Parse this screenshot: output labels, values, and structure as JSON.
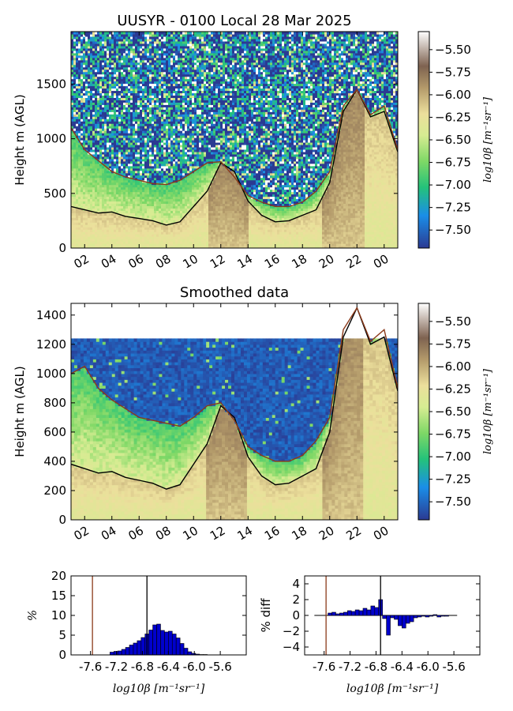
{
  "colors": {
    "colormap": [
      "#2b3a92",
      "#1a8ee8",
      "#24c27a",
      "#7ed866",
      "#d6ec92",
      "#ecdf9c",
      "#b39a6a",
      "#7e6250",
      "#ffffff"
    ],
    "pbl_black": "#000000",
    "pbl_brown": "#8b3a1a",
    "hist_bar": "#0000cc"
  },
  "chart_data": [
    {
      "id": "top",
      "type": "heatmap",
      "title": "UUSYR - 0100 Local 28 Mar 2025",
      "xlabel": "",
      "ylabel": "Height m (AGL)",
      "ylim": [
        0,
        1980
      ],
      "yticks": [
        0,
        500,
        1000,
        1500
      ],
      "xticks": [
        "02",
        "04",
        "06",
        "08",
        "10",
        "12",
        "14",
        "16",
        "18",
        "20",
        "22",
        "00"
      ],
      "colorbar_label": "log10β [m⁻¹sr⁻¹]",
      "colorbar_range": [
        -7.7,
        -5.3
      ],
      "colorbar_ticks": [
        "-5.50",
        "-5.75",
        "-6.00",
        "-6.25",
        "-6.50",
        "-6.75",
        "-7.00",
        "-7.25",
        "-7.50"
      ],
      "hours": [
        1,
        2,
        3,
        4,
        5,
        6,
        7,
        8,
        9,
        10,
        11,
        12,
        13,
        14,
        15,
        16,
        17,
        18,
        19,
        20,
        21,
        22,
        23,
        24,
        25
      ],
      "series": [
        {
          "color": "black",
          "values": [
            380,
            350,
            320,
            330,
            290,
            270,
            250,
            210,
            240,
            380,
            520,
            780,
            700,
            430,
            300,
            240,
            250,
            300,
            350,
            600,
            1250,
            1450,
            1200,
            1250,
            880
          ]
        },
        {
          "color": "brown",
          "values": [
            1100,
            900,
            800,
            700,
            650,
            620,
            590,
            580,
            620,
            700,
            780,
            790,
            650,
            480,
            420,
            380,
            380,
            420,
            520,
            700,
            1300,
            1450,
            1220,
            1300,
            900
          ]
        }
      ]
    },
    {
      "id": "mid",
      "type": "heatmap",
      "title": "Smoothed data",
      "xlabel": "",
      "ylabel": "Height m (AGL)",
      "ylim": [
        0,
        1480
      ],
      "yticks": [
        0,
        200,
        400,
        600,
        800,
        1000,
        1200,
        1400
      ],
      "xticks": [
        "02",
        "04",
        "06",
        "08",
        "10",
        "12",
        "14",
        "16",
        "18",
        "20",
        "22",
        "00"
      ],
      "data_top": 1240,
      "colorbar_label": "log10β [m⁻¹sr⁻¹]",
      "colorbar_range": [
        -7.7,
        -5.3
      ],
      "colorbar_ticks": [
        "-5.50",
        "-5.75",
        "-6.00",
        "-6.25",
        "-6.50",
        "-6.75",
        "-7.00",
        "-7.25",
        "-7.50"
      ],
      "hours": [
        1,
        2,
        3,
        4,
        5,
        6,
        7,
        8,
        9,
        10,
        11,
        12,
        13,
        14,
        15,
        16,
        17,
        18,
        19,
        20,
        21,
        22,
        23,
        24,
        25
      ],
      "series": [
        {
          "color": "black",
          "values": [
            380,
            350,
            320,
            330,
            290,
            270,
            250,
            210,
            240,
            380,
            520,
            780,
            700,
            430,
            300,
            240,
            250,
            300,
            350,
            600,
            1250,
            1450,
            1200,
            1250,
            880
          ]
        },
        {
          "color": "brown",
          "values": [
            1000,
            1050,
            900,
            820,
            760,
            700,
            680,
            660,
            640,
            700,
            780,
            800,
            680,
            500,
            440,
            400,
            400,
            440,
            540,
            700,
            1300,
            1450,
            1220,
            1300,
            900
          ]
        }
      ]
    },
    {
      "id": "hist",
      "type": "bar",
      "title": "",
      "xlabel": "log10β [m⁻¹sr⁻¹]",
      "ylabel": "%",
      "xlim": [
        -7.9,
        -5.2
      ],
      "ylim": [
        0,
        20
      ],
      "yticks": [
        0,
        5,
        10,
        15,
        20
      ],
      "xticks": [
        "-7.6",
        "-7.2",
        "-6.8",
        "-6.4",
        "-6.0",
        "-5.6"
      ],
      "vlines": [
        {
          "x": -7.57,
          "color": "brown"
        },
        {
          "x": -6.73,
          "color": "black"
        }
      ],
      "bin_width": 0.06,
      "bins": [
        -7.3,
        -7.24,
        -7.18,
        -7.12,
        -7.06,
        -7.0,
        -6.94,
        -6.88,
        -6.82,
        -6.76,
        -6.7,
        -6.64,
        -6.58,
        -6.52,
        -6.46,
        -6.4,
        -6.34,
        -6.28,
        -6.22,
        -6.16,
        -6.1,
        -6.04,
        -5.98,
        -5.92,
        -5.86
      ],
      "values": [
        0.7,
        0.9,
        1.0,
        1.4,
        1.9,
        2.5,
        3.0,
        3.6,
        4.4,
        5.3,
        6.3,
        7.6,
        7.8,
        6.2,
        5.8,
        6.0,
        5.3,
        4.3,
        2.9,
        1.7,
        0.8,
        0.4,
        0.2,
        0.1,
        0.1
      ]
    },
    {
      "id": "diff",
      "type": "bar",
      "title": "",
      "xlabel": "log10β [m⁻¹sr⁻¹]",
      "ylabel": "% diff",
      "xlim": [
        -7.9,
        -5.2
      ],
      "ylim": [
        -5,
        5
      ],
      "yticks": [
        -4,
        -2,
        0,
        2,
        4
      ],
      "xticks": [
        "-7.6",
        "-7.2",
        "-6.8",
        "-6.4",
        "-6.0",
        "-5.6"
      ],
      "vlines": [
        {
          "x": -7.57,
          "color": "brown"
        },
        {
          "x": -6.73,
          "color": "black"
        }
      ],
      "baseline_range": [
        -7.75,
        -5.55
      ],
      "bin_width": 0.06,
      "bins": [
        -7.54,
        -7.48,
        -7.42,
        -7.36,
        -7.3,
        -7.24,
        -7.18,
        -7.12,
        -7.06,
        -7.0,
        -6.94,
        -6.88,
        -6.82,
        -6.76,
        -6.7,
        -6.64,
        -6.58,
        -6.52,
        -6.46,
        -6.4,
        -6.34,
        -6.28,
        -6.22,
        -6.16,
        -6.1,
        -6.04,
        -5.98,
        -5.92,
        -5.86,
        -5.8,
        -5.74
      ],
      "values": [
        0.3,
        0.4,
        0.2,
        0.3,
        0.4,
        0.6,
        0.5,
        0.7,
        0.6,
        0.9,
        0.7,
        1.2,
        1.0,
        2.0,
        -0.4,
        -2.5,
        -0.3,
        -0.5,
        -1.3,
        -1.6,
        -1.0,
        -0.8,
        -0.3,
        -0.2,
        -0.1,
        -0.2,
        -0.1,
        0.1,
        -0.2,
        -0.1,
        -0.1
      ]
    }
  ]
}
